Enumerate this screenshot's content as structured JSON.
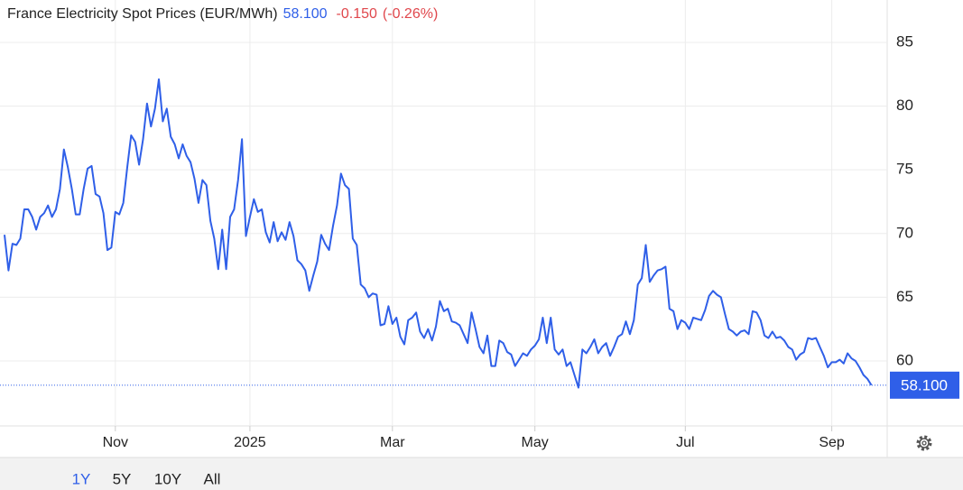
{
  "chart_data": {
    "type": "line",
    "title": "France Electricity Spot Prices (EUR/MWh)",
    "price": "58.100",
    "change": "-0.150",
    "change_pct": "(-0.26%)",
    "color": "#2f5fe8",
    "grid": true,
    "xlim": [
      0,
      223
    ],
    "xticks": [
      {
        "value": 28,
        "label": "Nov"
      },
      {
        "value": 62,
        "label": "2025"
      },
      {
        "value": 98,
        "label": "Mar"
      },
      {
        "value": 134,
        "label": "May"
      },
      {
        "value": 172,
        "label": "Jul"
      },
      {
        "value": 209,
        "label": "Sep"
      }
    ],
    "ylim": [
      55,
      88
    ],
    "yticks": [
      60,
      65,
      70,
      75,
      80,
      85
    ],
    "values": [
      69.9,
      67.1,
      69.2,
      69.1,
      69.6,
      71.9,
      71.9,
      71.3,
      70.3,
      71.3,
      71.6,
      72.2,
      71.3,
      71.9,
      73.5,
      76.6,
      75.2,
      73.5,
      71.5,
      71.5,
      73.5,
      75.1,
      75.3,
      73.1,
      72.9,
      71.6,
      68.7,
      68.9,
      71.7,
      71.5,
      72.4,
      75.2,
      77.7,
      77.2,
      75.4,
      77.4,
      80.2,
      78.4,
      79.8,
      82.1,
      78.8,
      79.8,
      77.6,
      77.0,
      75.9,
      77.0,
      76.1,
      75.6,
      74.3,
      72.4,
      74.2,
      73.8,
      71.0,
      69.6,
      67.2,
      70.3,
      67.2,
      71.3,
      71.9,
      74.2,
      77.4,
      69.8,
      71.3,
      72.7,
      71.7,
      71.9,
      70.1,
      69.3,
      70.9,
      69.4,
      70.1,
      69.5,
      70.9,
      69.8,
      67.9,
      67.6,
      67.1,
      65.5,
      66.7,
      67.8,
      69.9,
      69.2,
      68.7,
      70.6,
      72.2,
      74.7,
      73.8,
      73.5,
      69.6,
      69.1,
      66.0,
      65.7,
      65.0,
      65.3,
      65.2,
      62.8,
      62.9,
      64.3,
      62.9,
      63.4,
      61.9,
      61.3,
      63.2,
      63.4,
      63.8,
      62.3,
      61.8,
      62.5,
      61.6,
      62.7,
      64.7,
      63.9,
      64.1,
      63.1,
      63.0,
      62.8,
      62.1,
      61.4,
      63.8,
      62.5,
      61.1,
      60.6,
      62.0,
      59.6,
      59.6,
      61.6,
      61.4,
      60.7,
      60.5,
      59.6,
      60.1,
      60.6,
      60.4,
      60.9,
      61.2,
      61.7,
      63.4,
      61.4,
      63.4,
      60.9,
      60.5,
      60.9,
      59.6,
      59.9,
      58.9,
      57.9,
      60.9,
      60.6,
      61.1,
      61.7,
      60.6,
      61.1,
      61.4,
      60.4,
      61.1,
      61.9,
      62.1,
      63.1,
      62.1,
      63.2,
      66.0,
      66.5,
      69.1,
      66.2,
      66.7,
      67.1,
      67.2,
      67.4,
      64.1,
      63.9,
      62.5,
      63.2,
      63.0,
      62.5,
      63.4,
      63.3,
      63.2,
      64.0,
      65.1,
      65.5,
      65.2,
      65.0,
      63.7,
      62.5,
      62.3,
      62.0,
      62.3,
      62.4,
      62.1,
      63.9,
      63.8,
      63.2,
      62.0,
      61.8,
      62.3,
      61.8,
      61.9,
      61.6,
      61.1,
      60.9,
      60.1,
      60.5,
      60.7,
      61.8,
      61.7,
      61.8,
      61.1,
      60.4,
      59.5,
      59.9,
      59.9,
      60.1,
      59.8,
      60.6,
      60.2,
      60.0,
      59.5,
      58.9,
      58.6,
      58.1
    ]
  },
  "range_buttons": [
    "1Y",
    "5Y",
    "10Y",
    "All"
  ]
}
